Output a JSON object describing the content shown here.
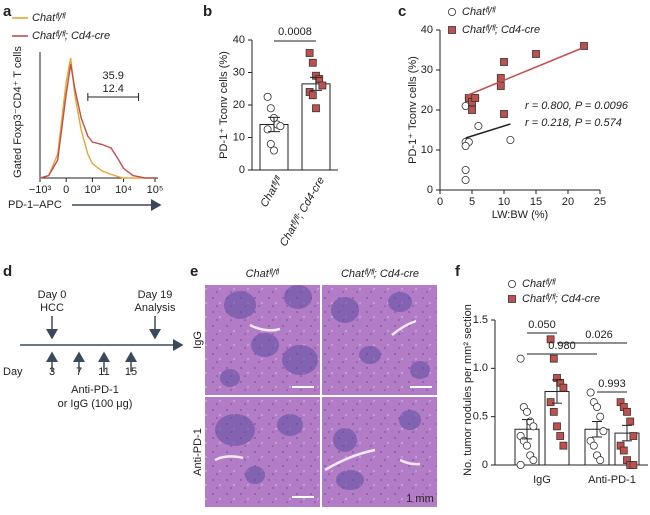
{
  "panel_labels": [
    "a",
    "b",
    "c",
    "d",
    "e",
    "f"
  ],
  "chart_data": [
    {
      "type": "line",
      "ylabel": "Gated Foxp3⁻CD4⁺ T cells",
      "xlabel": "PD-1–APC",
      "xscale": "biexponential",
      "x": [
        -1000,
        -500,
        -200,
        0,
        100,
        200,
        400,
        700,
        1000,
        2000,
        4000,
        7000,
        10000,
        20000,
        50000,
        100000
      ],
      "series": [
        {
          "name": "Chatᶠˡ/ᶠˡ",
          "color": "#e8a630",
          "values": [
            0,
            2,
            20,
            80,
            100,
            70,
            40,
            20,
            12,
            6,
            3,
            1,
            0,
            0,
            0,
            0
          ],
          "gate_percent": 12.4
        },
        {
          "name": "Chatᶠˡ/ᶠˡ; Cd4-cre",
          "color": "#c0504d",
          "values": [
            0,
            2,
            15,
            70,
            95,
            75,
            50,
            35,
            30,
            28,
            25,
            15,
            8,
            2,
            0,
            0
          ],
          "gate_percent": 35.9
        }
      ],
      "gate": [
        700,
        30000
      ],
      "xlim": [
        -1000,
        100000
      ],
      "xticks": [
        {
          "value": -1000,
          "label": "−10³"
        },
        0,
        {
          "value": 1000,
          "label": "10³"
        },
        {
          "value": 10000,
          "label": "10⁴"
        },
        {
          "value": 100000,
          "label": "10⁵"
        }
      ],
      "ylim": [
        0,
        100
      ]
    },
    {
      "type": "bar",
      "ylabel": "PD-1⁺ Tconv cells (%)",
      "categories": [
        "Chatᶠˡ/ᶠˡ",
        "Chatᶠˡ/ᶠˡ; Cd4-cre"
      ],
      "values": [
        14,
        26.5
      ],
      "errors": [
        2.2,
        2
      ],
      "points": [
        [
          22.5,
          19,
          16,
          14,
          13.5,
          12.5,
          8,
          6
        ],
        [
          36,
          33,
          29,
          28,
          26,
          24,
          23,
          19
        ]
      ],
      "colors": [
        "#ffffff",
        "#c0504d"
      ],
      "markers": [
        "circle",
        "square"
      ],
      "ylim": [
        0,
        40
      ],
      "yticks": [
        0,
        10,
        20,
        30,
        40
      ],
      "p_value": "0.0008"
    },
    {
      "type": "scatter",
      "xlabel": "LW:BW (%)",
      "ylabel": "PD-1⁺ Tconv cells (%)",
      "legend": "top-left",
      "series": [
        {
          "name": "Chatᶠˡ/ᶠˡ",
          "color": "#ffffff",
          "marker": "circle",
          "x": [
            4,
            4.5,
            5,
            5.5,
            4,
            4.5,
            4,
            4,
            4,
            6,
            11
          ],
          "values": [
            21,
            23,
            21,
            23,
            12,
            12,
            11,
            5,
            2.5,
            16,
            12.5
          ],
          "fit_x": [
            4,
            11
          ],
          "fit_y": [
            13,
            16.5
          ],
          "annotation": "r = 0.218, P = 0.574"
        },
        {
          "name": "Chatᶠˡ/ᶠˡ; Cd4-cre",
          "color": "#c0504d",
          "marker": "square",
          "x": [
            4.5,
            5,
            5.5,
            9.5,
            9.5,
            10,
            15,
            22.5,
            10,
            5
          ],
          "values": [
            23,
            22,
            23,
            26,
            28,
            32,
            34,
            36,
            19,
            20
          ],
          "fit_x": [
            4,
            23
          ],
          "fit_y": [
            23.5,
            36
          ],
          "annotation": "r = 0.800, P = 0.0096"
        }
      ],
      "xlim": [
        0,
        25
      ],
      "xticks": [
        0,
        5,
        10,
        15,
        20,
        25
      ],
      "ylim": [
        0,
        40
      ],
      "yticks": [
        0,
        10,
        20,
        30,
        40
      ]
    },
    {
      "type": "grouped_bar",
      "ylabel": "No. tumor nodules per mm² section",
      "legend": "top-left",
      "categories": [
        "IgG",
        "Anti-PD-1"
      ],
      "series": [
        {
          "name": "Chatᶠˡ/ᶠˡ",
          "color": "#ffffff",
          "marker": "circle",
          "values": [
            0.37,
            0.37
          ],
          "errors": [
            0.1,
            0.08
          ],
          "points": [
            [
              1.1,
              0.6,
              0.55,
              0.45,
              0.4,
              0.3,
              0.25,
              0.2,
              0.1,
              0.05,
              0
            ],
            [
              0.75,
              0.65,
              0.6,
              0.5,
              0.35,
              0.25,
              0.2,
              0.1,
              0.05
            ]
          ]
        },
        {
          "name": "Chatᶠˡ/ᶠˡ; Cd4-cre",
          "color": "#c0504d",
          "marker": "square",
          "values": [
            0.76,
            0.33
          ],
          "errors": [
            0.12,
            0.08
          ],
          "points": [
            [
              1.3,
              1.1,
              0.9,
              0.85,
              0.8,
              0.65,
              0.55,
              0.4,
              0.3,
              0.2
            ],
            [
              0.65,
              0.6,
              0.55,
              0.45,
              0.3,
              0.2,
              0.15,
              0.05,
              0,
              0
            ]
          ]
        }
      ],
      "ylim": [
        0,
        1.5
      ],
      "yticks": [
        0,
        0.5,
        {
          "value": 1,
          "label": "1.0"
        },
        1.5
      ],
      "p_values": [
        "0.050",
        "0.026",
        "0.980",
        "0.993"
      ]
    }
  ],
  "timeline": {
    "events": [
      {
        "day": "Day 0",
        "label": "HCC"
      },
      {
        "day": "Day 19",
        "label": "Analysis"
      }
    ],
    "axis_label": "Day",
    "treatment_days": [
      3,
      7,
      11,
      15
    ],
    "treatment": [
      "Anti-PD-1",
      "or IgG (100 μg)"
    ]
  },
  "histology": {
    "columns": [
      "Chatᶠˡ/ᶠˡ",
      "Chatᶠˡ/ᶠˡ; Cd4-cre"
    ],
    "rows": [
      "IgG",
      "Anti-PD-1"
    ],
    "scale_bar": "1 mm"
  }
}
